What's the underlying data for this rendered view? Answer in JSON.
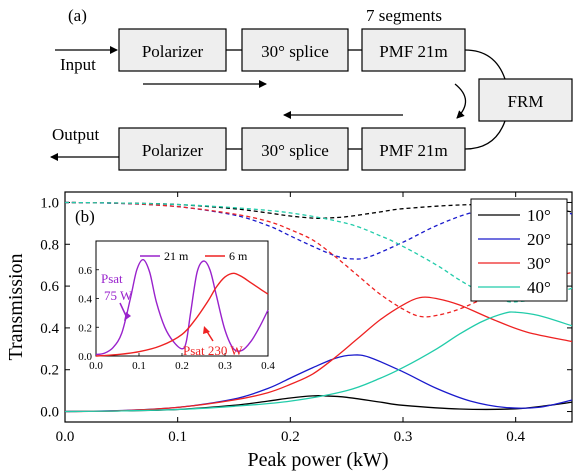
{
  "diagram": {
    "panel_label": "(a)",
    "segments_label": "7 segments",
    "input_label": "Input",
    "output_label": "Output",
    "top_row": [
      "Polarizer",
      "30° splice",
      "PMF 21m"
    ],
    "bottom_row": [
      "Polarizer",
      "30° splice",
      "PMF 21m"
    ],
    "frm_label": "FRM"
  },
  "chart_data": [
    {
      "type": "line",
      "panel_label": "(b)",
      "xlabel": "Peak power (kW)",
      "ylabel": "Transmission",
      "xlim": [
        0,
        0.45
      ],
      "ylim": [
        -0.05,
        1.05
      ],
      "xticks": [
        0.0,
        0.1,
        0.2,
        0.3,
        0.4
      ],
      "xtick_labels": [
        "0.0",
        "0.1",
        "0.2",
        "0.3",
        "0.4"
      ],
      "yticks": [
        0.0,
        0.2,
        0.4,
        0.6,
        0.8,
        1.0
      ],
      "ytick_labels": [
        "0.0",
        "0.2",
        "0.4",
        "0.6",
        "0.8",
        "1.0"
      ],
      "legend_position": "top-right",
      "legend": [
        {
          "label": "10°",
          "color": "#000000",
          "dash": "solid"
        },
        {
          "label": "20°",
          "color": "#1a1acc",
          "dash": "solid"
        },
        {
          "label": "30°",
          "color": "#ee2222",
          "dash": "solid"
        },
        {
          "label": "40°",
          "color": "#22ccaa",
          "dash": "solid"
        }
      ],
      "series": [
        {
          "color": "#000000",
          "dash": "solid",
          "x": [
            0,
            0.05,
            0.1,
            0.15,
            0.18,
            0.2,
            0.22,
            0.23,
            0.25,
            0.28,
            0.3,
            0.35,
            0.4,
            0.43,
            0.45
          ],
          "y": [
            0,
            0.003,
            0.01,
            0.03,
            0.05,
            0.065,
            0.075,
            0.075,
            0.068,
            0.045,
            0.03,
            0.012,
            0.013,
            0.03,
            0.045
          ]
        },
        {
          "color": "#000000",
          "dash": "dashed",
          "x": [
            0,
            0.05,
            0.1,
            0.15,
            0.18,
            0.2,
            0.22,
            0.23,
            0.25,
            0.28,
            0.3,
            0.35,
            0.4,
            0.43,
            0.45
          ],
          "y": [
            1,
            0.997,
            0.99,
            0.97,
            0.95,
            0.935,
            0.925,
            0.925,
            0.932,
            0.955,
            0.97,
            0.988,
            0.99,
            0.97,
            0.955
          ]
        },
        {
          "color": "#1a1acc",
          "dash": "solid",
          "x": [
            0,
            0.05,
            0.1,
            0.15,
            0.18,
            0.2,
            0.22,
            0.24,
            0.255,
            0.27,
            0.3,
            0.33,
            0.36,
            0.39,
            0.42,
            0.45
          ],
          "y": [
            0,
            0.005,
            0.02,
            0.06,
            0.11,
            0.16,
            0.21,
            0.255,
            0.27,
            0.26,
            0.19,
            0.11,
            0.05,
            0.02,
            0.02,
            0.055
          ]
        },
        {
          "color": "#1a1acc",
          "dash": "dashed",
          "x": [
            0,
            0.05,
            0.1,
            0.15,
            0.18,
            0.2,
            0.22,
            0.24,
            0.255,
            0.27,
            0.3,
            0.33,
            0.36,
            0.39,
            0.42,
            0.45
          ],
          "y": [
            1,
            0.995,
            0.98,
            0.94,
            0.89,
            0.84,
            0.79,
            0.745,
            0.73,
            0.74,
            0.81,
            0.89,
            0.95,
            0.98,
            0.98,
            0.945
          ]
        },
        {
          "color": "#ee2222",
          "dash": "solid",
          "x": [
            0,
            0.05,
            0.1,
            0.15,
            0.18,
            0.2,
            0.22,
            0.24,
            0.26,
            0.28,
            0.3,
            0.315,
            0.33,
            0.35,
            0.38,
            0.41,
            0.45
          ],
          "y": [
            0,
            0.004,
            0.02,
            0.055,
            0.09,
            0.13,
            0.18,
            0.26,
            0.35,
            0.44,
            0.51,
            0.545,
            0.54,
            0.51,
            0.44,
            0.38,
            0.335
          ]
        },
        {
          "color": "#ee2222",
          "dash": "dashed",
          "x": [
            0,
            0.05,
            0.1,
            0.15,
            0.18,
            0.2,
            0.22,
            0.24,
            0.26,
            0.28,
            0.3,
            0.315,
            0.33,
            0.35,
            0.38,
            0.41,
            0.45
          ],
          "y": [
            1,
            0.996,
            0.98,
            0.945,
            0.91,
            0.87,
            0.82,
            0.74,
            0.65,
            0.56,
            0.49,
            0.455,
            0.46,
            0.49,
            0.56,
            0.62,
            0.665
          ]
        },
        {
          "color": "#22ccaa",
          "dash": "solid",
          "x": [
            0,
            0.05,
            0.1,
            0.15,
            0.2,
            0.25,
            0.28,
            0.3,
            0.33,
            0.35,
            0.37,
            0.39,
            0.4,
            0.42,
            0.45
          ],
          "y": [
            0,
            0.003,
            0.01,
            0.025,
            0.05,
            0.1,
            0.16,
            0.21,
            0.3,
            0.37,
            0.43,
            0.47,
            0.475,
            0.46,
            0.41
          ]
        },
        {
          "color": "#22ccaa",
          "dash": "dashed",
          "x": [
            0,
            0.05,
            0.1,
            0.15,
            0.2,
            0.25,
            0.28,
            0.3,
            0.33,
            0.35,
            0.37,
            0.39,
            0.4,
            0.42,
            0.45
          ],
          "y": [
            1,
            0.997,
            0.99,
            0.975,
            0.95,
            0.9,
            0.84,
            0.79,
            0.7,
            0.63,
            0.57,
            0.53,
            0.525,
            0.54,
            0.59
          ]
        }
      ],
      "inset": {
        "xlim": [
          0,
          0.4
        ],
        "ylim": [
          0,
          0.8
        ],
        "xticks": [
          0.0,
          0.1,
          0.2,
          0.3,
          0.4
        ],
        "xtick_labels": [
          "0.0",
          "0.1",
          "0.2",
          "0.3",
          "0.4"
        ],
        "yticks": [
          0.0,
          0.2,
          0.4,
          0.6
        ],
        "ytick_labels": [
          "0.0",
          "0.2",
          "0.4",
          "0.6"
        ],
        "legend": [
          {
            "label": "21 m",
            "color": "#9922cc"
          },
          {
            "label": "6 m",
            "color": "#ee2222"
          }
        ],
        "series": [
          {
            "name": "21 m",
            "color": "#9922cc",
            "x": [
              0,
              0.02,
              0.04,
              0.06,
              0.08,
              0.095,
              0.11,
              0.125,
              0.14,
              0.16,
              0.18,
              0.2,
              0.21,
              0.22,
              0.235,
              0.25,
              0.265,
              0.28,
              0.3,
              0.32,
              0.34,
              0.36,
              0.38,
              0.4
            ],
            "y": [
              0.01,
              0.02,
              0.06,
              0.16,
              0.4,
              0.6,
              0.67,
              0.58,
              0.38,
              0.2,
              0.1,
              0.05,
              0.1,
              0.3,
              0.58,
              0.66,
              0.6,
              0.42,
              0.18,
              0.05,
              0.04,
              0.1,
              0.2,
              0.32
            ]
          },
          {
            "name": "6 m",
            "color": "#ee2222",
            "x": [
              0,
              0.05,
              0.1,
              0.15,
              0.2,
              0.23,
              0.26,
              0.28,
              0.3,
              0.32,
              0.34,
              0.36,
              0.38,
              0.4
            ],
            "y": [
              0,
              0.01,
              0.03,
              0.07,
              0.15,
              0.25,
              0.38,
              0.48,
              0.55,
              0.575,
              0.55,
              0.51,
              0.47,
              0.43
            ]
          }
        ],
        "annotations": [
          {
            "lines": [
              "Psat",
              "75 W"
            ],
            "color": "#9922cc"
          },
          {
            "lines": [
              "Psat 230 W"
            ],
            "color": "#ee2222"
          }
        ]
      }
    }
  ]
}
